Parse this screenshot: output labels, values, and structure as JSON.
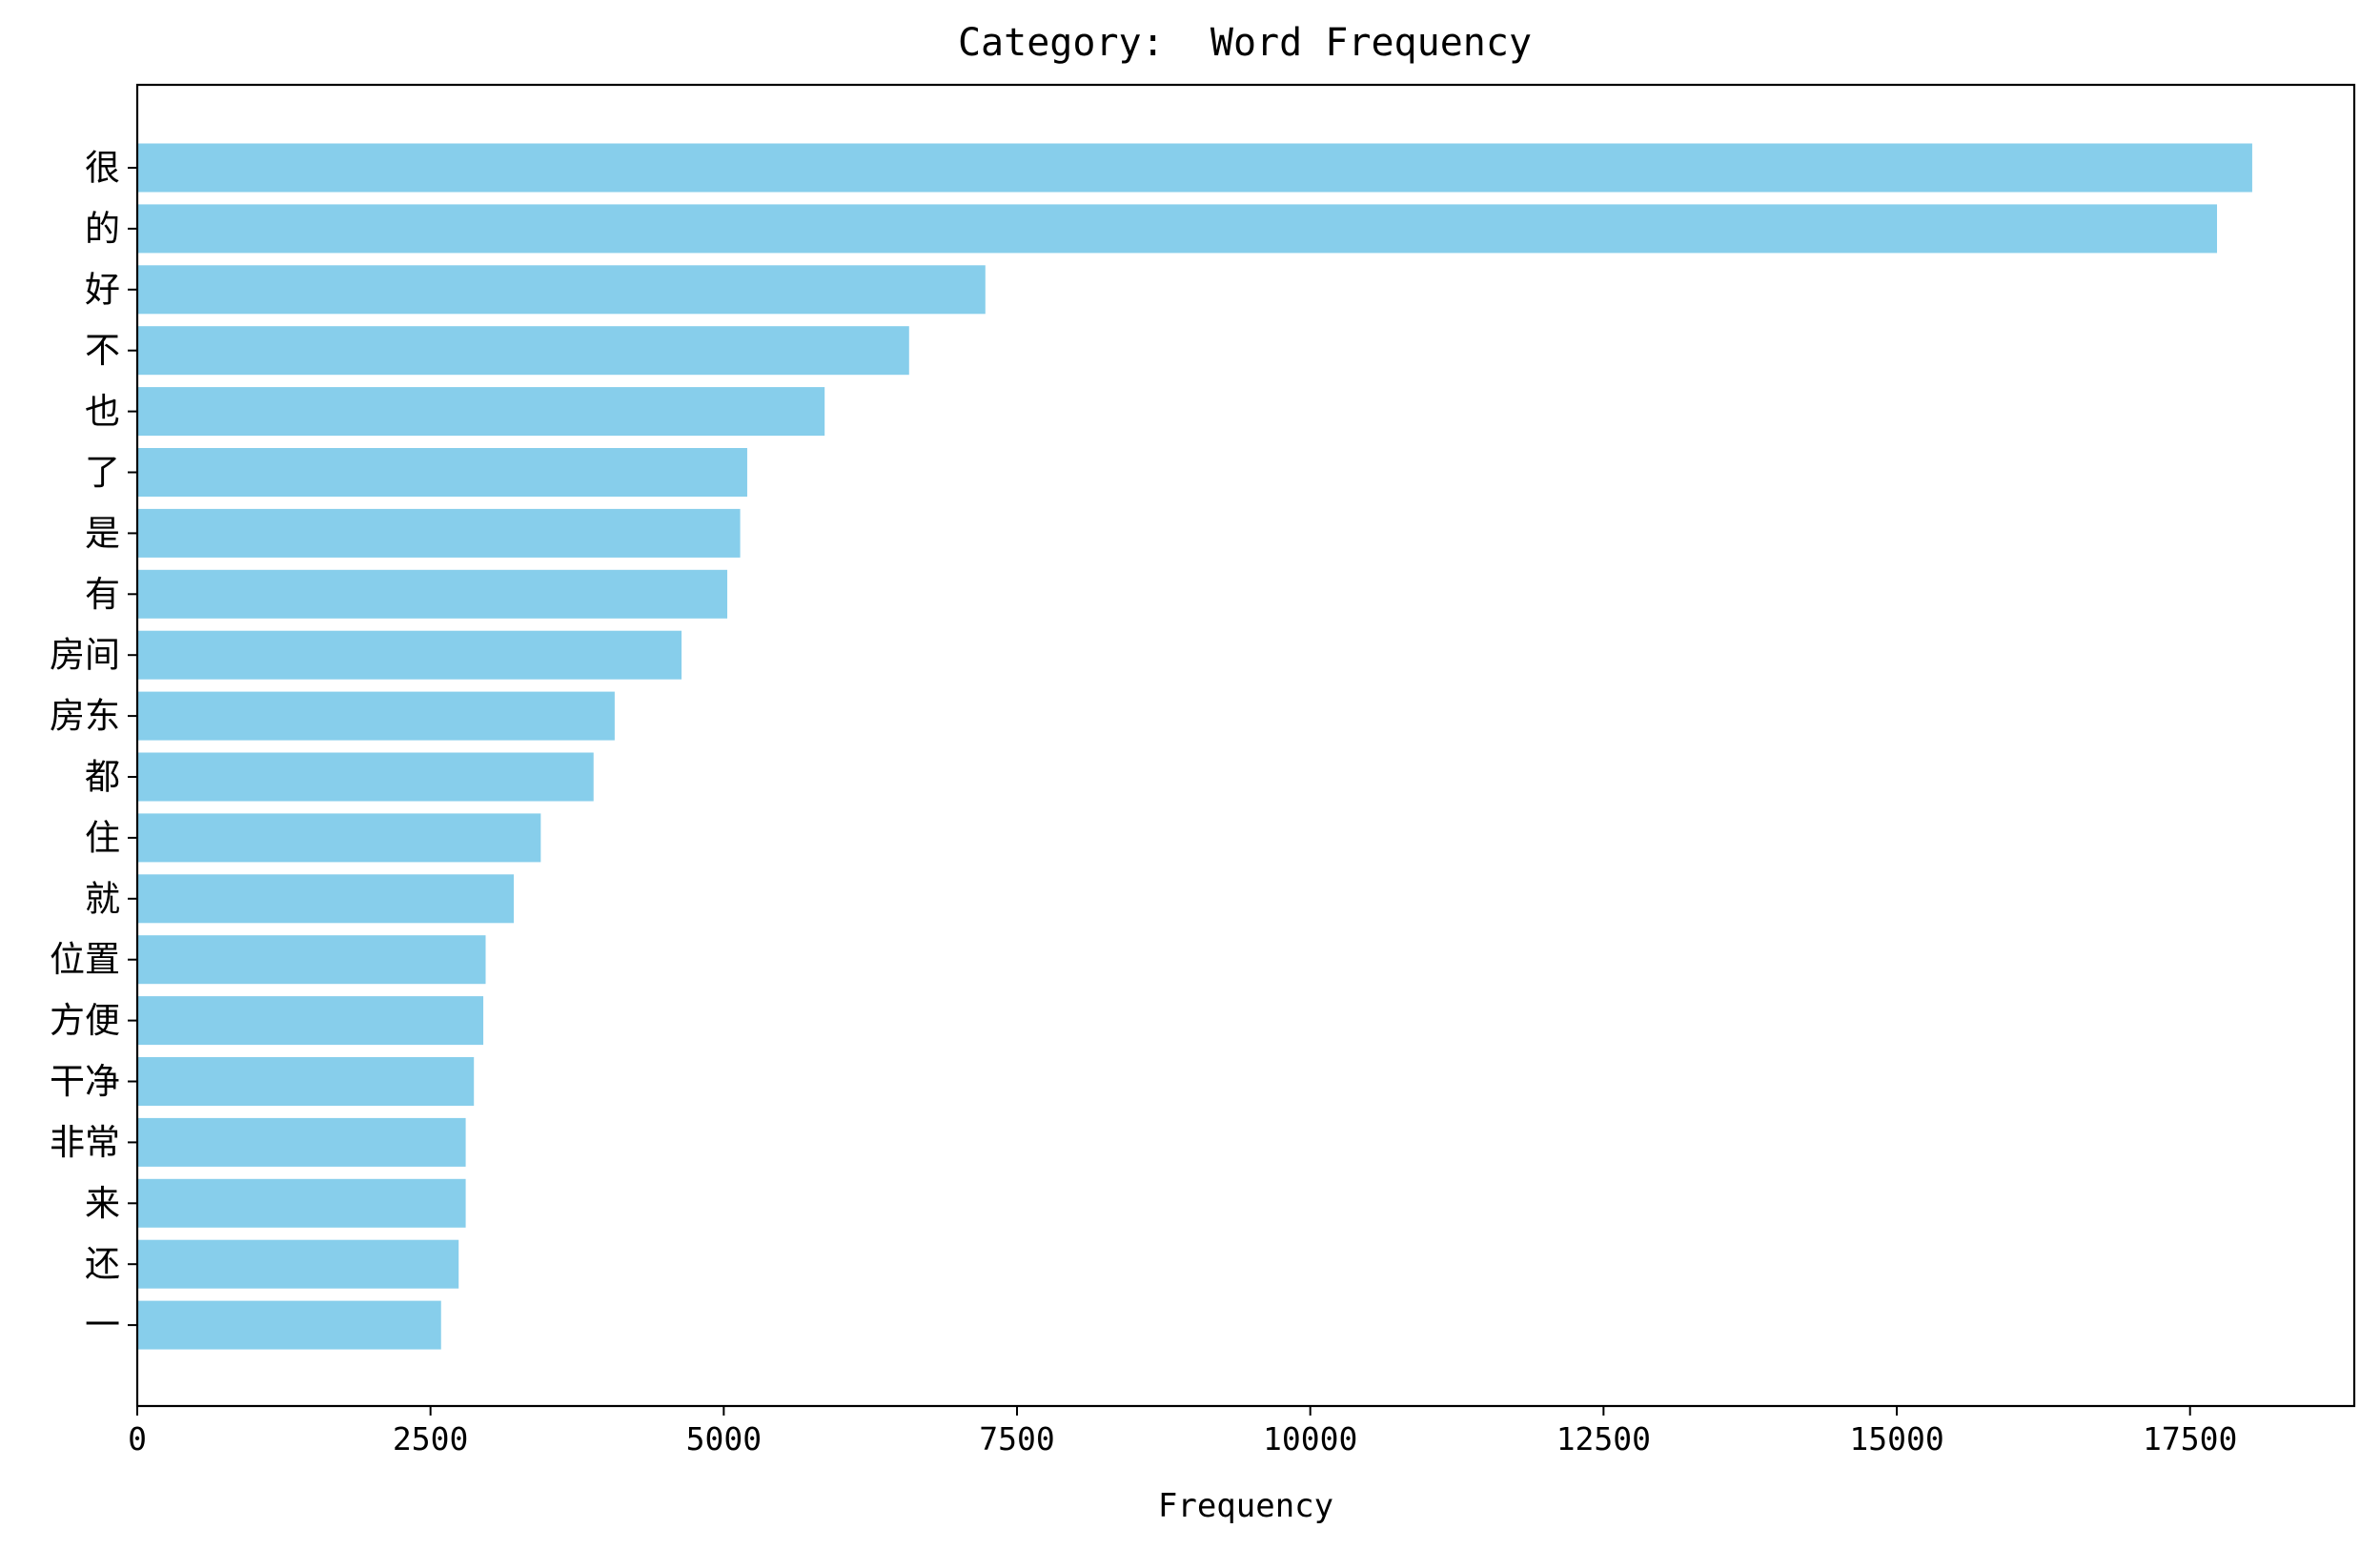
{
  "chart_data": {
    "type": "bar",
    "orientation": "horizontal",
    "title": "Category:  Word Frequency",
    "xlabel": "Frequency",
    "ylabel": "",
    "xlim": [
      0,
      18900
    ],
    "xticks": [
      0,
      2500,
      5000,
      7500,
      10000,
      12500,
      15000,
      17500
    ],
    "xtick_labels": [
      "0",
      "2500",
      "5000",
      "7500",
      "10000",
      "12500",
      "15000",
      "17500"
    ],
    "grid": false,
    "bar_color": "#87CEEB",
    "categories": [
      "很",
      "的",
      "好",
      "不",
      "也",
      "了",
      "是",
      "有",
      "房间",
      "房东",
      "都",
      "住",
      "就",
      "位置",
      "方便",
      "干净",
      "非常",
      "来",
      "还",
      "一"
    ],
    "values": [
      18030,
      17730,
      7230,
      6580,
      5860,
      5200,
      5140,
      5030,
      4640,
      4070,
      3890,
      3440,
      3210,
      2970,
      2950,
      2870,
      2800,
      2800,
      2740,
      2590
    ]
  }
}
